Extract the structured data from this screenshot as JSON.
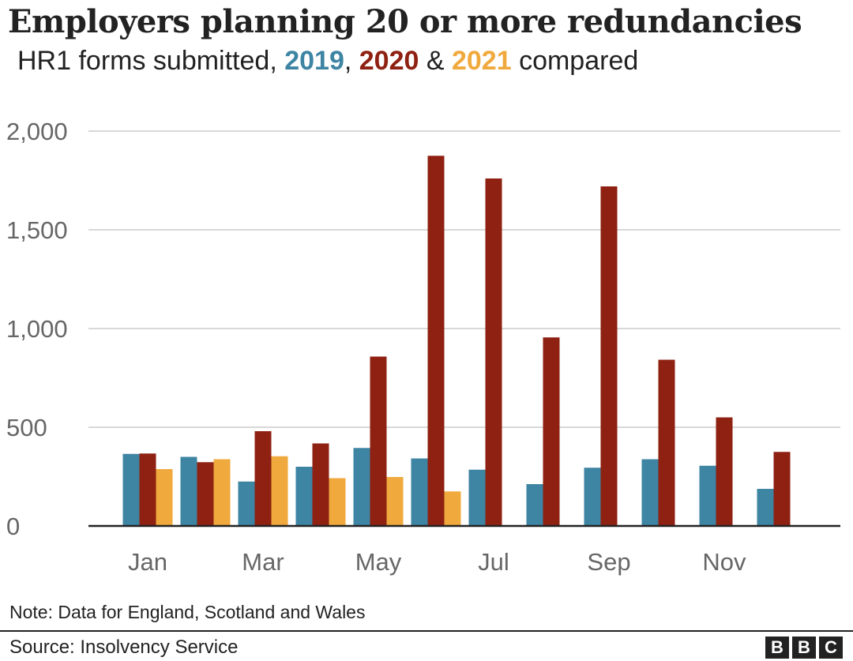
{
  "title": "Employers planning 20 or more redundancies",
  "subtitle": {
    "prefix": "HR1 forms submitted, ",
    "year_a": "2019",
    "sep1": ", ",
    "year_b": "2020",
    "sep2": " & ",
    "year_c": "2021",
    "suffix": " compared"
  },
  "note": "Note: Data for England, Scotland and Wales",
  "source": "Source: Insolvency Service",
  "logo": [
    "B",
    "B",
    "C"
  ],
  "colors": {
    "2019": "#3e84a3",
    "2020": "#8e2112",
    "2021": "#f0a93d",
    "grid": "#cccccc",
    "axis": "#222222",
    "tick_label": "#666666"
  },
  "chart_data": {
    "type": "bar",
    "categories": [
      "Jan",
      "Feb",
      "Mar",
      "Apr",
      "May",
      "Jun",
      "Jul",
      "Aug",
      "Sep",
      "Oct",
      "Nov",
      "Dec"
    ],
    "x_tick_labels": [
      "Jan",
      "",
      "Mar",
      "",
      "May",
      "",
      "Jul",
      "",
      "Sep",
      "",
      "Nov",
      ""
    ],
    "series": [
      {
        "name": "2019",
        "values": [
          365,
          350,
          225,
          300,
          395,
          342,
          285,
          212,
          295,
          338,
          305,
          188
        ]
      },
      {
        "name": "2020",
        "values": [
          367,
          323,
          480,
          418,
          858,
          1875,
          1760,
          955,
          1720,
          842,
          550,
          375
        ]
      },
      {
        "name": "2021",
        "values": [
          288,
          338,
          353,
          242,
          248,
          175,
          null,
          null,
          null,
          null,
          null,
          null
        ]
      }
    ],
    "y_ticks": [
      0,
      500,
      1000,
      1500,
      2000
    ],
    "y_tick_labels": [
      "0",
      "500",
      "1,000",
      "1,500",
      "2,000"
    ],
    "ylim": [
      0,
      2000
    ],
    "grid": true,
    "legend": "in subtitle"
  }
}
